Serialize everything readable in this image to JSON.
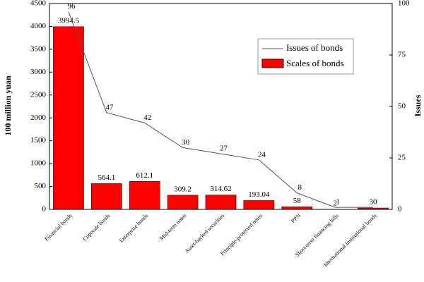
{
  "chart_data": {
    "type": "bar",
    "categories": [
      "Financial bonds",
      "Coporate bonds",
      "Enterprise bonds",
      "Mid-term notes",
      "Asset-backed securities",
      "Principle-protected notes",
      "PPN",
      "Short-term financing bills",
      "International institutional bonds"
    ],
    "series": [
      {
        "name": "Scales of bonds",
        "type": "bar",
        "color": "#ff0000",
        "values": [
          3994.5,
          564.1,
          612.1,
          309.2,
          314.62,
          193.04,
          58,
          2,
          30
        ]
      },
      {
        "name": "Issues of bonds",
        "type": "line",
        "axis": "y2",
        "color": "#555555",
        "values": [
          96,
          47,
          42,
          30,
          27,
          24,
          8,
          1,
          1
        ],
        "value_labels": [
          "96",
          "47",
          "42",
          "30",
          "27",
          "24",
          "8",
          "1",
          null
        ]
      }
    ],
    "ylabel": "100 million yuan",
    "y2label": "Issues",
    "ylim": [
      0,
      4500
    ],
    "yticks": [
      0,
      500,
      1000,
      1500,
      2000,
      2500,
      3000,
      3500,
      4000,
      4500
    ],
    "y2lim": [
      0,
      100
    ],
    "y2ticks": [
      0,
      25,
      50,
      75,
      100
    ],
    "legend": "upper right"
  }
}
